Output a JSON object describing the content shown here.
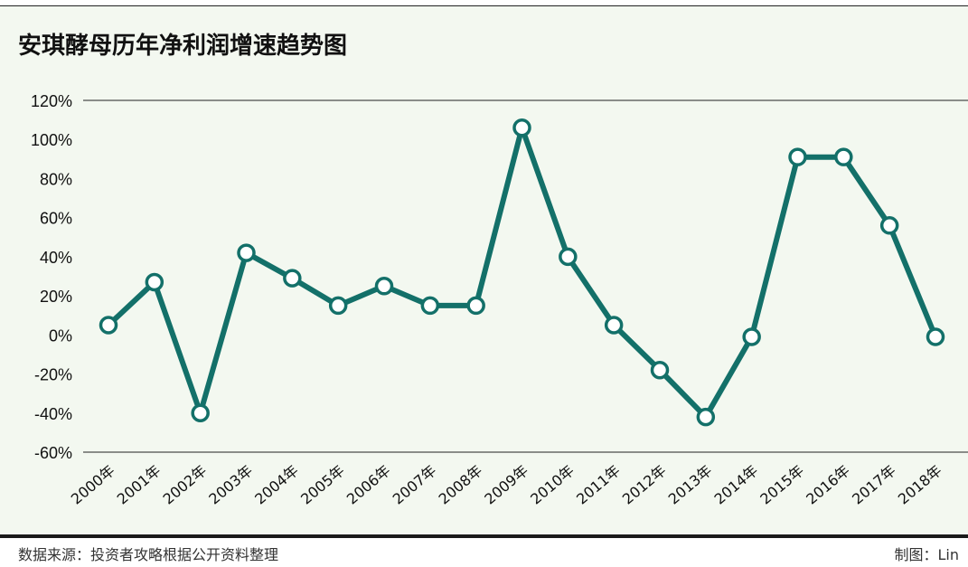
{
  "chart_data": {
    "type": "line",
    "title": "安琪酵母历年净利润增速趋势图",
    "xlabel": "",
    "ylabel": "",
    "categories": [
      "2000年",
      "2001年",
      "2002年",
      "2003年",
      "2004年",
      "2005年",
      "2006年",
      "2007年",
      "2008年",
      "2009年",
      "2010年",
      "2011年",
      "2012年",
      "2013年",
      "2014年",
      "2015年",
      "2016年",
      "2017年",
      "2018年"
    ],
    "series": [
      {
        "values": [
          5,
          27,
          -40,
          42,
          29,
          15,
          25,
          15,
          15,
          106,
          40,
          5,
          -18,
          -42,
          -1,
          91,
          91,
          56,
          -1
        ]
      }
    ],
    "ylim": [
      -60,
      120
    ],
    "yticks": [
      -60,
      -40,
      -20,
      0,
      20,
      40,
      60,
      80,
      100,
      120
    ],
    "ytick_labels": [
      "-60%",
      "-40%",
      "-20%",
      "0%",
      "20%",
      "40%",
      "60%",
      "80%",
      "100%",
      "120%"
    ],
    "grid": "top and bottom lines only",
    "line_color": "#137069"
  },
  "footer": {
    "source": "数据来源：投资者攻略根据公开资料整理",
    "credit": "制图：Lin"
  }
}
